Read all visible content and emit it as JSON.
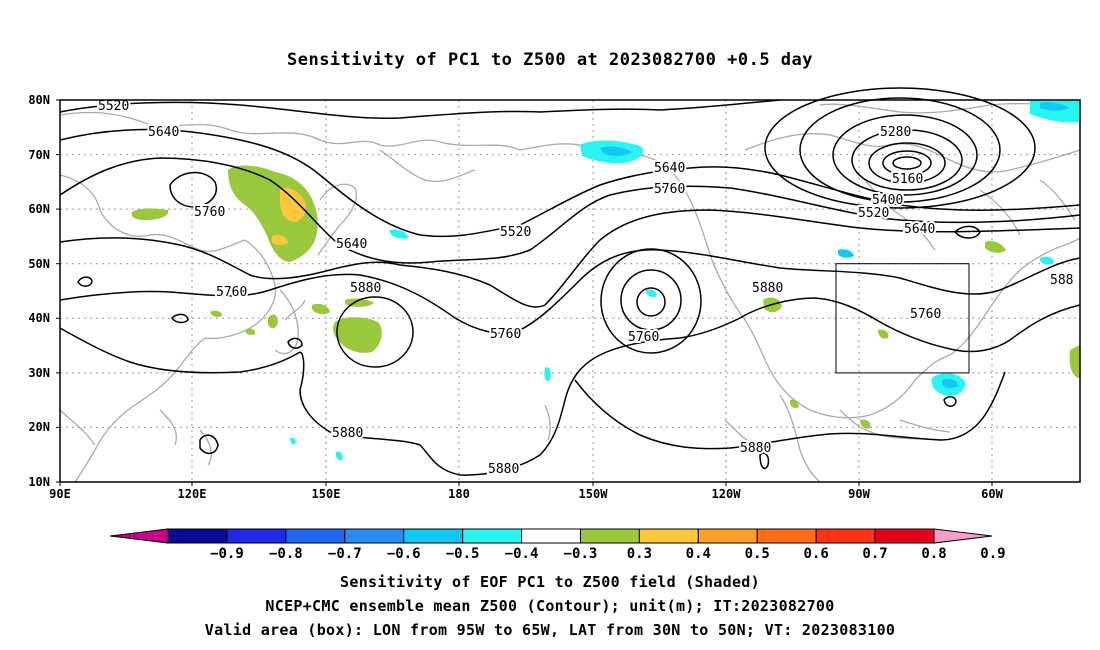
{
  "title": "Sensitivity of PC1 to Z500 at 2023082700 +0.5 day",
  "lat_ticks": [
    "80N",
    "70N",
    "60N",
    "50N",
    "40N",
    "30N",
    "20N",
    "10N"
  ],
  "lon_ticks": [
    "90E",
    "120E",
    "150E",
    "180",
    "150W",
    "120W",
    "90W",
    "60W"
  ],
  "contour_labels": [
    "5520",
    "5640",
    "5760",
    "5640",
    "5760",
    "5880",
    "5520",
    "5760",
    "5640",
    "5760",
    "5760",
    "5880",
    "5280",
    "5160",
    "5400",
    "5520",
    "5640",
    "5760",
    "5880",
    "5880",
    "5880",
    "588"
  ],
  "colorbar": {
    "labels": [
      "−0.9",
      "−0.8",
      "−0.7",
      "−0.6",
      "−0.5",
      "−0.4",
      "−0.3",
      "0.3",
      "0.4",
      "0.5",
      "0.6",
      "0.7",
      "0.8",
      "0.9"
    ],
    "colors": [
      "#c8008c",
      "#0b0b9a",
      "#1e28e6",
      "#1e64f0",
      "#2a8cf0",
      "#14c8f5",
      "#28f5f0",
      "#ffffff",
      "#99c83c",
      "#ffc83c",
      "#ffa028",
      "#ff6e14",
      "#ff3214",
      "#e6001e",
      "#f5a0c8"
    ]
  },
  "captions": [
    "Sensitivity of EOF PC1 to Z500 field (Shaded)",
    "NCEP+CMC ensemble mean Z500 (Contour); unit(m); IT:2023082700",
    "Valid area (box): LON from 95W to 65W, LAT from 30N to 50N; VT: 2023083100"
  ],
  "colors": {
    "coast": "#aaaaaa",
    "contour": "#000000",
    "grid": "#999999",
    "green": "#99c83c",
    "cyan": "#28f5f0",
    "lightblue": "#14c8f5",
    "yellow": "#ffc83c"
  }
}
